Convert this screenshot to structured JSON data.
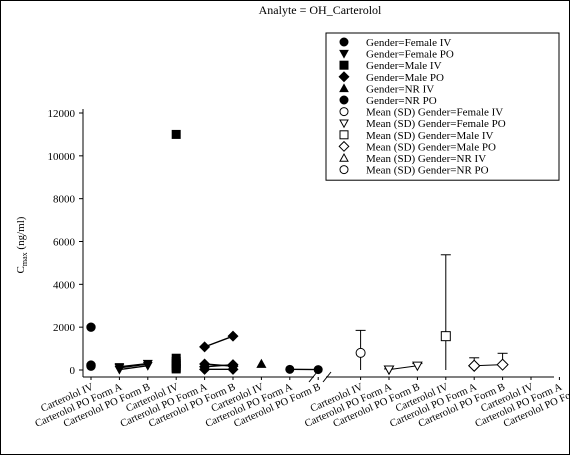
{
  "chart_data": {
    "type": "scatter",
    "title": "Analyte = OH_Carterolol",
    "ylabel_main": "C",
    "ylabel_sub": "max",
    "ylabel_units": " (ng/ml)",
    "ylim": [
      0,
      12000
    ],
    "yticks": [
      0,
      2000,
      4000,
      6000,
      8000,
      10000,
      12000
    ],
    "axis_break": true,
    "grid": false,
    "legend_position": "top-right",
    "categories": [
      "Carterolol IV",
      "Carterolol PO Form A",
      "Carterolol PO Form B",
      "Carterolol IV",
      "Carterolol PO Form A",
      "Carterolol PO Form B",
      "Carterolol IV",
      "Carterolol PO Form A",
      "Carterolol PO Form B",
      "Carterolol IV",
      "Carterolol PO Form A",
      "Carterolol PO Form B",
      "Carterolol IV",
      "Carterolol PO Form A",
      "Carterolol PO Form B",
      "Carterolol IV",
      "Carterolol PO Form A",
      "Carterolol PO Form B"
    ],
    "legend": [
      {
        "label": "Gender=Female  IV",
        "marker": "circle",
        "fill": "filled"
      },
      {
        "label": "Gender=Female  PO",
        "marker": "triangle-down",
        "fill": "filled"
      },
      {
        "label": "Gender=Male  IV",
        "marker": "square",
        "fill": "filled"
      },
      {
        "label": "Gender=Male  PO",
        "marker": "diamond",
        "fill": "filled"
      },
      {
        "label": "Gender=NR  IV",
        "marker": "triangle-up",
        "fill": "filled"
      },
      {
        "label": "Gender=NR  PO",
        "marker": "circle",
        "fill": "filled"
      },
      {
        "label": "Mean (SD) Gender=Female IV",
        "marker": "circle",
        "fill": "open"
      },
      {
        "label": "Mean (SD) Gender=Female PO",
        "marker": "triangle-down",
        "fill": "open"
      },
      {
        "label": "Mean (SD) Gender=Male  IV",
        "marker": "square",
        "fill": "open"
      },
      {
        "label": "Mean (SD) Gender=Male  PO",
        "marker": "diamond",
        "fill": "open"
      },
      {
        "label": "Mean (SD) Gender=NR  IV",
        "marker": "triangle-up",
        "fill": "open"
      },
      {
        "label": "Mean (SD) Gender=NR  PO",
        "marker": "circle",
        "fill": "open"
      }
    ],
    "individual_series": [
      {
        "series": 0,
        "category": 0,
        "values": [
          2000,
          230,
          180
        ]
      },
      {
        "series": 1,
        "lines": [
          [
            [
              1,
              20
            ],
            [
              2,
              200
            ]
          ],
          [
            [
              1,
              100
            ],
            [
              2,
              280
            ]
          ],
          [
            [
              1,
              150
            ],
            [
              2,
              300
            ]
          ]
        ]
      },
      {
        "series": 2,
        "category": 3,
        "values": [
          11000,
          550,
          400,
          300,
          200,
          100,
          50
        ]
      },
      {
        "series": 3,
        "lines": [
          [
            [
              4,
              1080
            ],
            [
              5,
              1580
            ]
          ],
          [
            [
              4,
              280
            ],
            [
              5,
              180
            ]
          ],
          [
            [
              4,
              150
            ],
            [
              5,
              250
            ]
          ],
          [
            [
              4,
              30
            ],
            [
              5,
              30
            ]
          ]
        ]
      },
      {
        "series": 4,
        "category": 6,
        "values": [
          280
        ]
      },
      {
        "series": 5,
        "lines": [
          [
            [
              7,
              30
            ],
            [
              8,
              20
            ]
          ]
        ]
      }
    ],
    "mean_series": [
      {
        "series": 6,
        "category": 9,
        "mean": 800,
        "sd_upper": 1850,
        "sd_lower": 0
      },
      {
        "series": 7,
        "category": 10,
        "mean": 20,
        "sd_upper": 50,
        "sd_lower": 0
      },
      {
        "series": 7,
        "category": 11,
        "mean": 200,
        "sd_upper": 300,
        "sd_lower": 0,
        "connect_to_prev": true
      },
      {
        "series": 8,
        "category": 12,
        "mean": 1580,
        "sd_upper": 5380,
        "sd_lower": 0
      },
      {
        "series": 9,
        "category": 13,
        "mean": 200,
        "sd_upper": 570,
        "sd_lower": 0
      },
      {
        "series": 9,
        "category": 14,
        "mean": 250,
        "sd_upper": 780,
        "sd_lower": 0,
        "connect_to_prev": true
      }
    ]
  }
}
